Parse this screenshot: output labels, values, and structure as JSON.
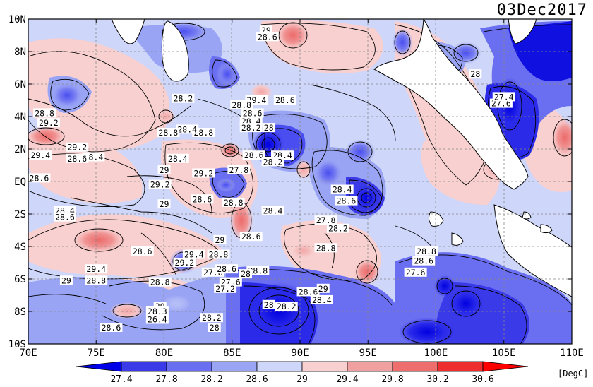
{
  "title": "03Dec2017",
  "unit": "[DegC]",
  "map": {
    "lon_range": [
      70,
      110
    ],
    "lat_range": [
      -10,
      10
    ],
    "x_ticks": [
      "70E",
      "75E",
      "80E",
      "85E",
      "90E",
      "95E",
      "100E",
      "105E",
      "110E"
    ],
    "y_ticks": [
      "10N",
      "8N",
      "6N",
      "4N",
      "2N",
      "EQ",
      "2S",
      "4S",
      "6S",
      "8S",
      "10S"
    ],
    "grid": "dashed",
    "land_color": "#ffffff"
  },
  "colorbar": {
    "levels": [
      "27.4",
      "27.8",
      "28.2",
      "28.6",
      "29",
      "29.4",
      "29.8",
      "30.2",
      "30.6"
    ],
    "colors": [
      "#0000e8",
      "#3a3ae8",
      "#6a6ef0",
      "#9aa4f4",
      "#ced6fa",
      "#f8d0d0",
      "#f0a0a0",
      "#ee6e6e",
      "#ee2e2e",
      "#ff0000"
    ]
  },
  "contour_labels": [
    {
      "text": "29",
      "lon": 87.5,
      "lat": 9.3
    },
    {
      "text": "28.6",
      "lon": 87.6,
      "lat": 8.9
    },
    {
      "text": "28.2",
      "lon": 81.4,
      "lat": 5.1
    },
    {
      "text": "29.4",
      "lon": 86.8,
      "lat": 5.0
    },
    {
      "text": "28.6",
      "lon": 88.9,
      "lat": 5.0
    },
    {
      "text": "28.8",
      "lon": 85.7,
      "lat": 4.7
    },
    {
      "text": "28.6",
      "lon": 86.5,
      "lat": 4.2
    },
    {
      "text": "28.4",
      "lon": 86.4,
      "lat": 3.7
    },
    {
      "text": "28.2",
      "lon": 86.4,
      "lat": 3.3
    },
    {
      "text": "28",
      "lon": 87.7,
      "lat": 3.3
    },
    {
      "text": "28.8",
      "lon": 82.9,
      "lat": 3.0
    },
    {
      "text": "28.4",
      "lon": 81.7,
      "lat": 3.2
    },
    {
      "text": "28.8",
      "lon": 80.3,
      "lat": 3.0
    },
    {
      "text": "29.2",
      "lon": 73.6,
      "lat": 2.1
    },
    {
      "text": "28.4",
      "lon": 74.8,
      "lat": 1.5
    },
    {
      "text": "28.6",
      "lon": 73.6,
      "lat": 1.4
    },
    {
      "text": "29.4",
      "lon": 70.9,
      "lat": 1.6
    },
    {
      "text": "28.4",
      "lon": 81.0,
      "lat": 1.4
    },
    {
      "text": "28.6",
      "lon": 86.6,
      "lat": 1.6
    },
    {
      "text": "28.4",
      "lon": 88.7,
      "lat": 1.6
    },
    {
      "text": "28.2",
      "lon": 88.0,
      "lat": 1.2
    },
    {
      "text": "27.8",
      "lon": 85.5,
      "lat": 0.7
    },
    {
      "text": "29.2",
      "lon": 82.9,
      "lat": 0.5
    },
    {
      "text": "29",
      "lon": 80.0,
      "lat": 0.7
    },
    {
      "text": "28.6",
      "lon": 70.8,
      "lat": 0.2
    },
    {
      "text": "29.2",
      "lon": 79.7,
      "lat": -0.2
    },
    {
      "text": "28.6",
      "lon": 82.8,
      "lat": -1.1
    },
    {
      "text": "28.8",
      "lon": 85.1,
      "lat": -1.3
    },
    {
      "text": "28.4",
      "lon": 93.1,
      "lat": -0.5
    },
    {
      "text": "28.6",
      "lon": 93.4,
      "lat": -1.2
    },
    {
      "text": "29",
      "lon": 80.0,
      "lat": -1.4
    },
    {
      "text": "28.4",
      "lon": 72.7,
      "lat": -1.8
    },
    {
      "text": "28.6",
      "lon": 72.7,
      "lat": -2.2
    },
    {
      "text": "28.4",
      "lon": 88.0,
      "lat": -1.8
    },
    {
      "text": "27.8",
      "lon": 91.9,
      "lat": -2.4
    },
    {
      "text": "28.2",
      "lon": 92.8,
      "lat": -2.9
    },
    {
      "text": "28.6",
      "lon": 86.4,
      "lat": -3.4
    },
    {
      "text": "29",
      "lon": 84.1,
      "lat": -3.6
    },
    {
      "text": "28.8",
      "lon": 91.9,
      "lat": -4.1
    },
    {
      "text": "28.6",
      "lon": 78.4,
      "lat": -4.3
    },
    {
      "text": "28.8",
      "lon": 84.0,
      "lat": -4.5
    },
    {
      "text": "29.4",
      "lon": 82.2,
      "lat": -4.5
    },
    {
      "text": "29.2",
      "lon": 81.5,
      "lat": -5.0
    },
    {
      "text": "28.8",
      "lon": 99.3,
      "lat": -4.3
    },
    {
      "text": "28.6",
      "lon": 99.1,
      "lat": -4.9
    },
    {
      "text": "29.4",
      "lon": 75.0,
      "lat": -5.4
    },
    {
      "text": "27.8",
      "lon": 83.6,
      "lat": -5.6
    },
    {
      "text": "28.6",
      "lon": 84.6,
      "lat": -5.4
    },
    {
      "text": "28.8",
      "lon": 86.9,
      "lat": -5.5
    },
    {
      "text": "28",
      "lon": 86.0,
      "lat": -5.7
    },
    {
      "text": "29",
      "lon": 72.8,
      "lat": -6.1
    },
    {
      "text": "28.8",
      "lon": 75.0,
      "lat": -6.1
    },
    {
      "text": "28.8",
      "lon": 79.7,
      "lat": -6.2
    },
    {
      "text": "27.6",
      "lon": 84.9,
      "lat": -6.2
    },
    {
      "text": "27.2",
      "lon": 84.5,
      "lat": -6.6
    },
    {
      "text": "28.6",
      "lon": 90.6,
      "lat": -6.8
    },
    {
      "text": "29",
      "lon": 91.7,
      "lat": -6.6
    },
    {
      "text": "28.4",
      "lon": 91.6,
      "lat": -7.3
    },
    {
      "text": "28",
      "lon": 87.7,
      "lat": -7.6
    },
    {
      "text": "28.2",
      "lon": 89.0,
      "lat": -7.7
    },
    {
      "text": "29",
      "lon": 79.7,
      "lat": -7.7
    },
    {
      "text": "28.3",
      "lon": 79.5,
      "lat": -8.0
    },
    {
      "text": "26.4",
      "lon": 79.5,
      "lat": -8.5
    },
    {
      "text": "28.2",
      "lon": 83.5,
      "lat": -8.4
    },
    {
      "text": "28",
      "lon": 83.7,
      "lat": -9.0
    },
    {
      "text": "28.6",
      "lon": 76.1,
      "lat": -9.0
    },
    {
      "text": "27.6",
      "lon": 98.5,
      "lat": -5.6
    },
    {
      "text": "27.6",
      "lon": 104.8,
      "lat": 4.8
    },
    {
      "text": "27.4",
      "lon": 105.0,
      "lat": 5.2
    },
    {
      "text": "28",
      "lon": 102.9,
      "lat": 6.6
    },
    {
      "text": "29.2",
      "lon": 71.5,
      "lat": 3.6
    },
    {
      "text": "28.8",
      "lon": 71.2,
      "lat": 4.2
    }
  ]
}
